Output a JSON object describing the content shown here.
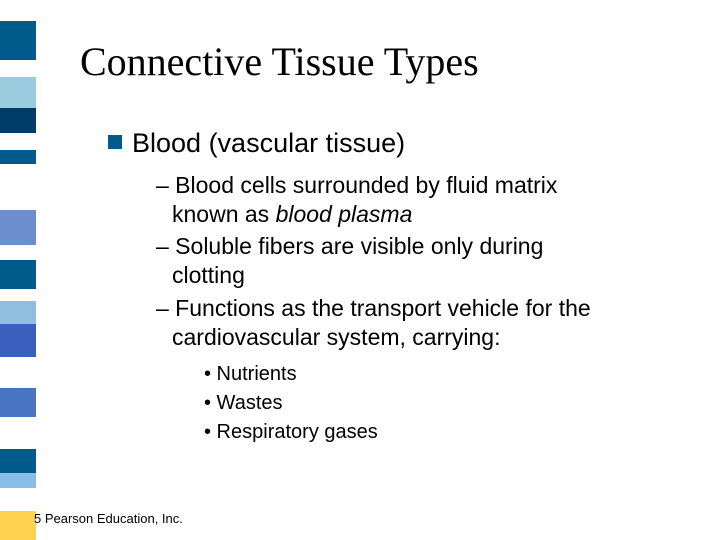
{
  "title": "Connective Tissue Types",
  "stripe": {
    "blocks": [
      {
        "height": 22,
        "color": "#ffffff"
      },
      {
        "height": 40,
        "color": "#005a8c"
      },
      {
        "height": 18,
        "color": "#ffffff"
      },
      {
        "height": 32,
        "color": "#99ccdd"
      },
      {
        "height": 26,
        "color": "#003d66"
      },
      {
        "height": 18,
        "color": "#ffffff"
      },
      {
        "height": 14,
        "color": "#005a8c"
      },
      {
        "height": 48,
        "color": "#ffffff"
      },
      {
        "height": 36,
        "color": "#6b8fcc"
      },
      {
        "height": 16,
        "color": "#ffffff"
      },
      {
        "height": 30,
        "color": "#005a8c"
      },
      {
        "height": 12,
        "color": "#ffffff"
      },
      {
        "height": 24,
        "color": "#8fbfe0"
      },
      {
        "height": 34,
        "color": "#3b5fbf"
      },
      {
        "height": 32,
        "color": "#ffffff"
      },
      {
        "height": 30,
        "color": "#4a75c4"
      },
      {
        "height": 34,
        "color": "#ffffff"
      },
      {
        "height": 24,
        "color": "#005a8c"
      },
      {
        "height": 16,
        "color": "#88bde6"
      },
      {
        "height": 24,
        "color": "#ffffff"
      },
      {
        "height": 30,
        "color": "#ffd24d"
      }
    ]
  },
  "bullet": {
    "label_bold": "Blood",
    "label_rest": " (vascular tissue)"
  },
  "sub": {
    "item1a": "– Blood cells surrounded by fluid matrix",
    "item1b": "known as ",
    "item1c": "blood plasma",
    "item2a": "– Soluble fibers are visible only during",
    "item2b": "clotting",
    "item3a": "– Functions as the transport vehicle for the",
    "item3b": "cardiovascular system, carrying:"
  },
  "subsub": {
    "item1": "• Nutrients",
    "item2": "• Wastes",
    "item3": "• Respiratory gases"
  },
  "footer": "5 Pearson Education, Inc."
}
